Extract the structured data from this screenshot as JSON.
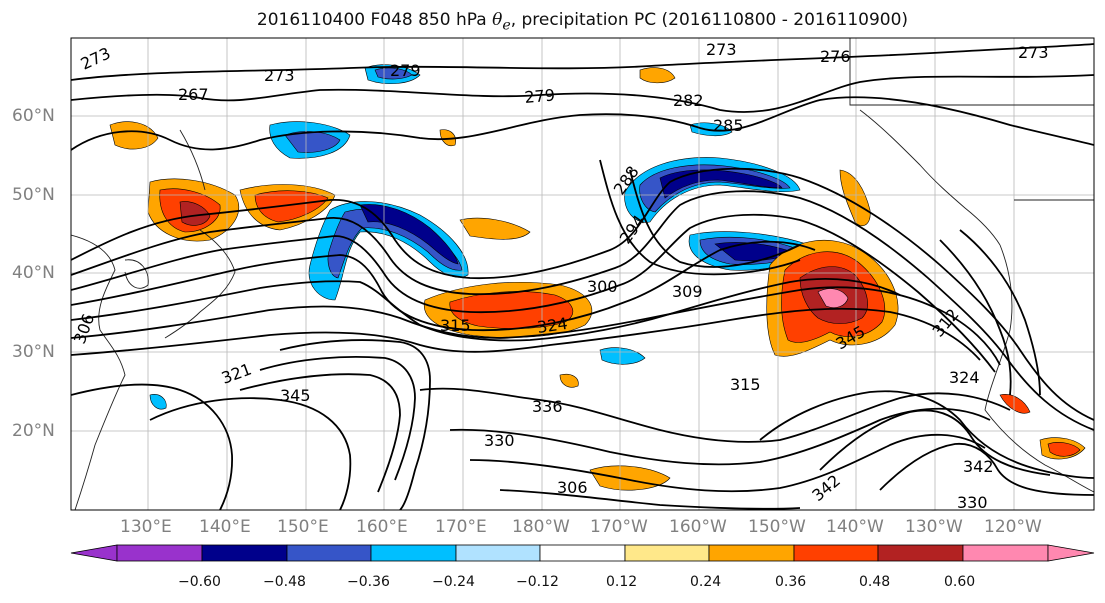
{
  "title": {
    "prefix": "2016110400 F048 850 hPa ",
    "var_symbol": "θ",
    "var_sub": "e",
    "suffix": ", precipitation PC (2016110800 - 2016110900)"
  },
  "map": {
    "lat_labels": [
      "60°N",
      "50°N",
      "40°N",
      "30°N",
      "20°N"
    ],
    "lon_labels": [
      "130°E",
      "140°E",
      "150°E",
      "160°E",
      "170°E",
      "180°W",
      "170°W",
      "160°W",
      "150°W",
      "140°W",
      "130°W",
      "120°W"
    ],
    "contour_labels": [
      "273",
      "267",
      "273",
      "279",
      "279",
      "282",
      "285",
      "273",
      "276",
      "273",
      "288",
      "294",
      "300",
      "309",
      "315",
      "324",
      "306",
      "321",
      "345",
      "330",
      "336",
      "315",
      "324",
      "306",
      "342",
      "342",
      "330",
      "345",
      "312"
    ]
  },
  "colorbar": {
    "ticks": [
      "−0.60",
      "−0.48",
      "−0.36",
      "−0.24",
      "−0.12",
      "0.12",
      "0.24",
      "0.36",
      "0.48",
      "0.60"
    ],
    "colors": [
      "#9932cc",
      "#00008b",
      "#3655c8",
      "#00bfff",
      "#b0e2ff",
      "#ffffff",
      "#ffe88a",
      "#ffa500",
      "#ff4000",
      "#b22222",
      "#ff88b0"
    ]
  }
}
